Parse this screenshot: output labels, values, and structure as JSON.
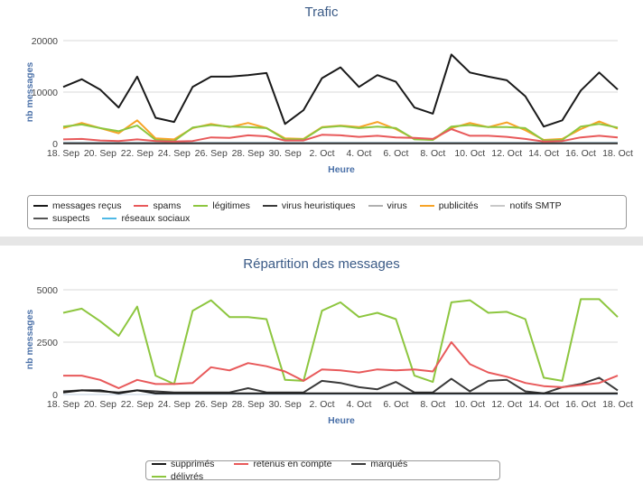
{
  "charts": [
    {
      "title": "Trafic",
      "ylabel": "nb messages",
      "xlabel": "Heure",
      "legend": [
        "messages reçus",
        "spams",
        "légitimes",
        "virus heuristiques",
        "virus",
        "publicités",
        "notifs SMTP",
        "suspects",
        "réseaux sociaux"
      ]
    },
    {
      "title": "Répartition des messages",
      "ylabel": "nb messages",
      "xlabel": "Heure",
      "legend": [
        "supprimés",
        "retenus en compte",
        "marqués",
        "délivrés"
      ]
    }
  ],
  "chart_data": [
    {
      "type": "line",
      "title": "Trafic",
      "xlabel": "Heure",
      "ylabel": "nb messages",
      "ylim": [
        0,
        20000
      ],
      "yticks": [
        "0",
        "10000",
        "20000"
      ],
      "ytick_values": [
        0,
        10000,
        20000
      ],
      "x_tick_labels": [
        "18. Sep",
        "20. Sep",
        "22. Sep",
        "24. Sep",
        "26. Sep",
        "28. Sep",
        "30. Sep",
        "2. Oct",
        "4. Oct",
        "6. Oct",
        "8. Oct",
        "10. Oct",
        "12. Oct",
        "14. Oct",
        "16. Oct",
        "18. Oct"
      ],
      "x": [
        "18. Sep",
        "19. Sep",
        "20. Sep",
        "21. Sep",
        "22. Sep",
        "23. Sep",
        "24. Sep",
        "25. Sep",
        "26. Sep",
        "27. Sep",
        "28. Sep",
        "29. Sep",
        "30. Sep",
        "1. Oct",
        "2. Oct",
        "3. Oct",
        "4. Oct",
        "5. Oct",
        "6. Oct",
        "7. Oct",
        "8. Oct",
        "9. Oct",
        "10. Oct",
        "11. Oct",
        "12. Oct",
        "13. Oct",
        "14. Oct",
        "15. Oct",
        "16. Oct",
        "17. Oct",
        "18. Oct"
      ],
      "grid": true,
      "legend_position": "bottom",
      "series": [
        {
          "name": "messages reçus",
          "color": "#1a1a1a",
          "values": [
            11000,
            12500,
            10500,
            7000,
            13000,
            5000,
            4200,
            11000,
            13000,
            13000,
            13300,
            13700,
            3800,
            6500,
            12700,
            14800,
            11000,
            13300,
            12000,
            7000,
            5800,
            17300,
            13800,
            13000,
            12300,
            9200,
            3300,
            4500,
            10300,
            13800,
            10500
          ]
        },
        {
          "name": "spams",
          "color": "#e8595a",
          "values": [
            800,
            900,
            600,
            500,
            800,
            500,
            400,
            500,
            1200,
            1100,
            1600,
            1400,
            600,
            600,
            1700,
            1600,
            1300,
            1500,
            1200,
            1100,
            900,
            2800,
            1500,
            1500,
            1300,
            900,
            400,
            500,
            1200,
            1500,
            1200
          ]
        },
        {
          "name": "légitimes",
          "color": "#8dc63f",
          "values": [
            3300,
            3700,
            3000,
            2400,
            3500,
            700,
            500,
            3100,
            3600,
            3300,
            3200,
            3000,
            800,
            800,
            3100,
            3400,
            3000,
            3300,
            3000,
            800,
            700,
            3300,
            3600,
            3200,
            3200,
            3000,
            600,
            700,
            3300,
            3800,
            3100
          ]
        },
        {
          "name": "virus heuristiques",
          "color": "#3a3a3a",
          "values": [
            30,
            30,
            30,
            30,
            30,
            30,
            30,
            30,
            30,
            30,
            30,
            30,
            30,
            30,
            30,
            30,
            30,
            30,
            30,
            30,
            30,
            30,
            30,
            30,
            30,
            30,
            30,
            30,
            30,
            30,
            30
          ]
        },
        {
          "name": "virus",
          "color": "#b0b0b0",
          "values": [
            20,
            20,
            20,
            20,
            20,
            20,
            20,
            20,
            20,
            20,
            20,
            20,
            20,
            20,
            20,
            20,
            20,
            20,
            20,
            20,
            20,
            20,
            20,
            20,
            20,
            20,
            20,
            20,
            20,
            20,
            20
          ]
        },
        {
          "name": "publicités",
          "color": "#f7a326",
          "values": [
            3000,
            4000,
            3000,
            2000,
            4500,
            1000,
            800,
            3000,
            3800,
            3200,
            4000,
            3000,
            1000,
            900,
            3200,
            3500,
            3200,
            4200,
            2800,
            900,
            700,
            3000,
            4000,
            3200,
            4100,
            2600,
            700,
            900,
            2800,
            4300,
            2900
          ]
        },
        {
          "name": "notifs SMTP",
          "color": "#c8c8c8",
          "values": [
            10,
            10,
            10,
            10,
            10,
            10,
            10,
            10,
            10,
            10,
            10,
            10,
            10,
            10,
            10,
            10,
            10,
            10,
            10,
            10,
            10,
            10,
            10,
            10,
            10,
            10,
            10,
            10,
            10,
            10,
            10
          ]
        },
        {
          "name": "suspects",
          "color": "#555555",
          "values": [
            40,
            40,
            40,
            40,
            40,
            40,
            40,
            40,
            40,
            40,
            40,
            40,
            40,
            40,
            40,
            40,
            40,
            40,
            40,
            40,
            40,
            40,
            40,
            40,
            40,
            40,
            40,
            40,
            40,
            40,
            40
          ]
        },
        {
          "name": "réseaux sociaux",
          "color": "#4fb9e6",
          "values": [
            100,
            100,
            100,
            100,
            100,
            100,
            100,
            100,
            100,
            100,
            100,
            100,
            100,
            100,
            100,
            100,
            100,
            100,
            100,
            100,
            100,
            100,
            100,
            100,
            100,
            100,
            100,
            100,
            100,
            100,
            100
          ]
        }
      ]
    },
    {
      "type": "line",
      "title": "Répartition des messages",
      "xlabel": "Heure",
      "ylabel": "nb messages",
      "ylim": [
        0,
        5000
      ],
      "yticks": [
        "0",
        "2500",
        "5000"
      ],
      "ytick_values": [
        0,
        2500,
        5000
      ],
      "x_tick_labels": [
        "18. Sep",
        "20. Sep",
        "22. Sep",
        "24. Sep",
        "26. Sep",
        "28. Sep",
        "30. Sep",
        "2. Oct",
        "4. Oct",
        "6. Oct",
        "8. Oct",
        "10. Oct",
        "12. Oct",
        "14. Oct",
        "16. Oct",
        "18. Oct"
      ],
      "x": [
        "18. Sep",
        "19. Sep",
        "20. Sep",
        "21. Sep",
        "22. Sep",
        "23. Sep",
        "24. Sep",
        "25. Sep",
        "26. Sep",
        "27. Sep",
        "28. Sep",
        "29. Sep",
        "30. Sep",
        "1. Oct",
        "2. Oct",
        "3. Oct",
        "4. Oct",
        "5. Oct",
        "6. Oct",
        "7. Oct",
        "8. Oct",
        "9. Oct",
        "10. Oct",
        "11. Oct",
        "12. Oct",
        "13. Oct",
        "14. Oct",
        "15. Oct",
        "16. Oct",
        "17. Oct",
        "18. Oct"
      ],
      "grid": true,
      "legend_position": "bottom",
      "series": [
        {
          "name": "supprimés",
          "color": "#1a1a1a",
          "values": [
            100,
            200,
            200,
            50,
            200,
            50,
            50,
            50,
            50,
            50,
            50,
            50,
            50,
            50,
            50,
            50,
            50,
            50,
            50,
            50,
            50,
            50,
            50,
            50,
            50,
            50,
            50,
            50,
            50,
            50,
            50
          ]
        },
        {
          "name": "retenus en compte",
          "color": "#e8595a",
          "values": [
            900,
            900,
            700,
            300,
            700,
            500,
            500,
            550,
            1300,
            1150,
            1500,
            1350,
            1100,
            650,
            1200,
            1150,
            1050,
            1200,
            1150,
            1200,
            1100,
            2500,
            1450,
            1050,
            850,
            550,
            400,
            350,
            450,
            550,
            900
          ]
        },
        {
          "name": "marqués",
          "color": "#3a3a3a",
          "values": [
            150,
            200,
            150,
            100,
            200,
            150,
            100,
            100,
            100,
            100,
            300,
            100,
            100,
            100,
            650,
            550,
            350,
            250,
            600,
            100,
            100,
            750,
            150,
            650,
            700,
            150,
            50,
            350,
            500,
            800,
            200
          ]
        },
        {
          "name": "délivrés",
          "color": "#8dc63f",
          "values": [
            3900,
            4100,
            3500,
            2800,
            4200,
            900,
            500,
            4000,
            4500,
            3700,
            3700,
            3600,
            700,
            650,
            4000,
            4400,
            3700,
            3900,
            3600,
            900,
            600,
            4400,
            4500,
            3900,
            3950,
            3600,
            800,
            650,
            4550,
            4550,
            3700
          ]
        }
      ]
    }
  ]
}
